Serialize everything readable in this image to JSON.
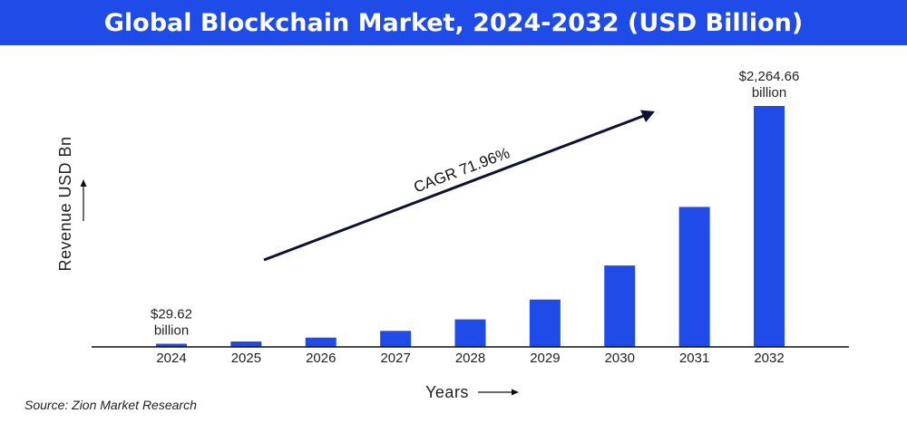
{
  "chart_data": {
    "type": "bar",
    "title": "Global Blockchain Market, 2024-2032 (USD Billion)",
    "xlabel": "Years",
    "ylabel": "Revenue USD Bn",
    "categories": [
      "2024",
      "2025",
      "2026",
      "2027",
      "2028",
      "2029",
      "2030",
      "2031",
      "2032"
    ],
    "values": [
      29.62,
      50.9,
      87.5,
      150.5,
      258.8,
      445.0,
      765.2,
      1315.7,
      2264.66
    ],
    "data_labels": [
      {
        "index": 0,
        "line1": "$29.62",
        "line2": "billion"
      },
      {
        "index": 8,
        "line1": "$2,264.66",
        "line2": "billion"
      }
    ],
    "annotation": "CAGR 71.96%",
    "ylim": [
      0,
      2264.66
    ],
    "grid": false,
    "bar_color": "#1f4be8"
  },
  "source": "Source: Zion Market Research"
}
